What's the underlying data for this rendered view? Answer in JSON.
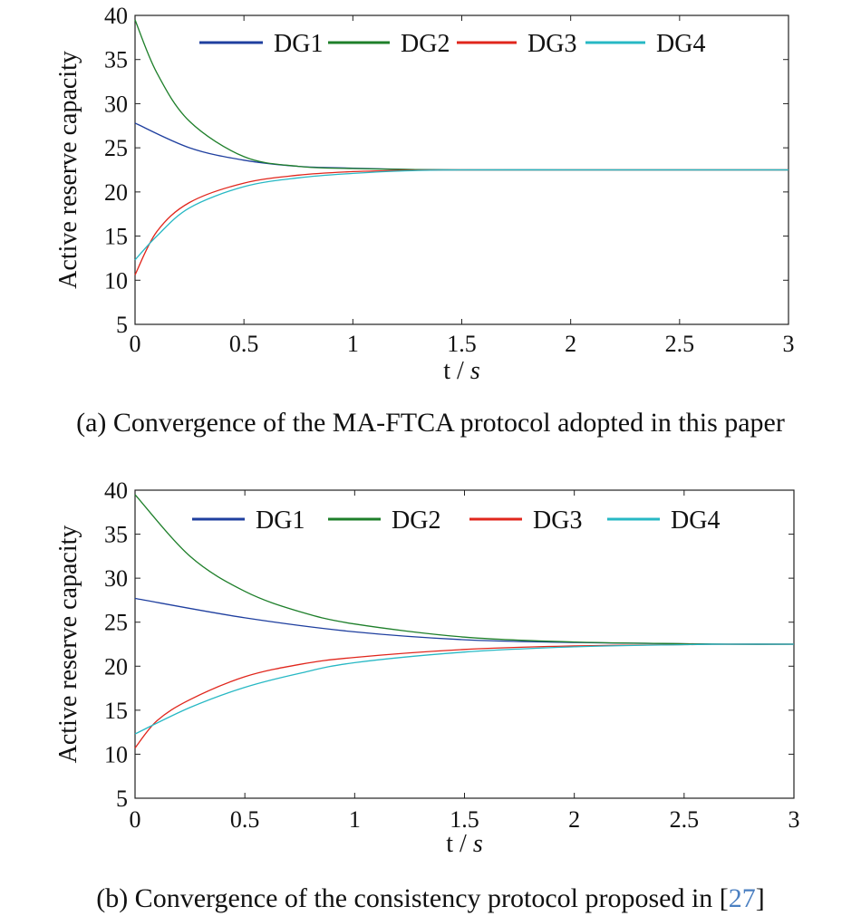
{
  "chart_data": [
    {
      "type": "line",
      "xlabel": "t / s",
      "ylabel": "Active reserve capacity",
      "xlim": [
        0,
        3
      ],
      "ylim": [
        5,
        40
      ],
      "xticks": [
        "0",
        "0.5",
        "1",
        "1.5",
        "2",
        "2.5",
        "3"
      ],
      "yticks": [
        "5",
        "10",
        "15",
        "20",
        "25",
        "30",
        "35",
        "40"
      ],
      "legend_position": "top",
      "caption": "(a) Convergence of the MA-FTCA protocol adopted in this paper",
      "caption_cite": "",
      "caption_end": "",
      "series": [
        {
          "name": "DG1",
          "color": "#1f3f9f",
          "x": [
            0,
            0.25,
            0.5,
            0.75,
            1.0,
            1.25,
            1.5,
            2.0,
            2.5,
            3.0
          ],
          "values": [
            27.8,
            25.0,
            23.6,
            22.9,
            22.7,
            22.55,
            22.5,
            22.5,
            22.5,
            22.5
          ]
        },
        {
          "name": "DG2",
          "color": "#1e7f2a",
          "x": [
            0,
            0.1,
            0.25,
            0.5,
            0.75,
            1.0,
            1.25,
            1.5,
            2.0,
            2.5,
            3.0
          ],
          "values": [
            39.5,
            33.5,
            28.0,
            24.0,
            22.9,
            22.65,
            22.55,
            22.5,
            22.5,
            22.5,
            22.5
          ]
        },
        {
          "name": "DG3",
          "color": "#e0261c",
          "x": [
            0,
            0.1,
            0.25,
            0.5,
            0.75,
            1.0,
            1.25,
            1.5,
            2.0,
            2.5,
            3.0
          ],
          "values": [
            10.6,
            15.5,
            18.8,
            21.0,
            21.9,
            22.3,
            22.45,
            22.5,
            22.5,
            22.5,
            22.5
          ]
        },
        {
          "name": "DG4",
          "color": "#27b8c4",
          "x": [
            0,
            0.1,
            0.25,
            0.5,
            0.75,
            1.0,
            1.25,
            1.5,
            2.0,
            2.5,
            3.0
          ],
          "values": [
            12.3,
            15.0,
            18.2,
            20.6,
            21.6,
            22.1,
            22.4,
            22.5,
            22.5,
            22.5,
            22.5
          ]
        }
      ]
    },
    {
      "type": "line",
      "xlabel": "t / s",
      "ylabel": "Active reserve capacity",
      "xlim": [
        0,
        3
      ],
      "ylim": [
        5,
        40
      ],
      "xticks": [
        "0",
        "0.5",
        "1",
        "1.5",
        "2",
        "2.5",
        "3"
      ],
      "yticks": [
        "5",
        "10",
        "15",
        "20",
        "25",
        "30",
        "35",
        "40"
      ],
      "legend_position": "top",
      "caption": "(b) Convergence of the consistency protocol proposed in [",
      "caption_cite": "27",
      "caption_end": "]",
      "series": [
        {
          "name": "DG1",
          "color": "#1f3f9f",
          "x": [
            0,
            0.5,
            1.0,
            1.5,
            2.0,
            2.5,
            2.7,
            3.0
          ],
          "values": [
            27.7,
            25.5,
            23.9,
            23.0,
            22.7,
            22.55,
            22.5,
            22.5
          ]
        },
        {
          "name": "DG2",
          "color": "#1e7f2a",
          "x": [
            0,
            0.25,
            0.5,
            0.75,
            1.0,
            1.5,
            2.0,
            2.5,
            2.7,
            3.0
          ],
          "values": [
            39.5,
            32.5,
            28.5,
            26.2,
            24.8,
            23.3,
            22.75,
            22.55,
            22.5,
            22.5
          ]
        },
        {
          "name": "DG3",
          "color": "#e0261c",
          "x": [
            0,
            0.1,
            0.25,
            0.5,
            0.75,
            1.0,
            1.5,
            2.0,
            2.5,
            2.7,
            3.0
          ],
          "values": [
            10.7,
            13.8,
            16.2,
            18.8,
            20.2,
            21.0,
            21.9,
            22.3,
            22.45,
            22.5,
            22.5
          ]
        },
        {
          "name": "DG4",
          "color": "#27b8c4",
          "x": [
            0,
            0.25,
            0.5,
            0.75,
            1.0,
            1.5,
            2.0,
            2.5,
            2.7,
            3.0
          ],
          "values": [
            12.3,
            15.3,
            17.6,
            19.2,
            20.4,
            21.6,
            22.2,
            22.45,
            22.5,
            22.5
          ]
        }
      ]
    }
  ]
}
